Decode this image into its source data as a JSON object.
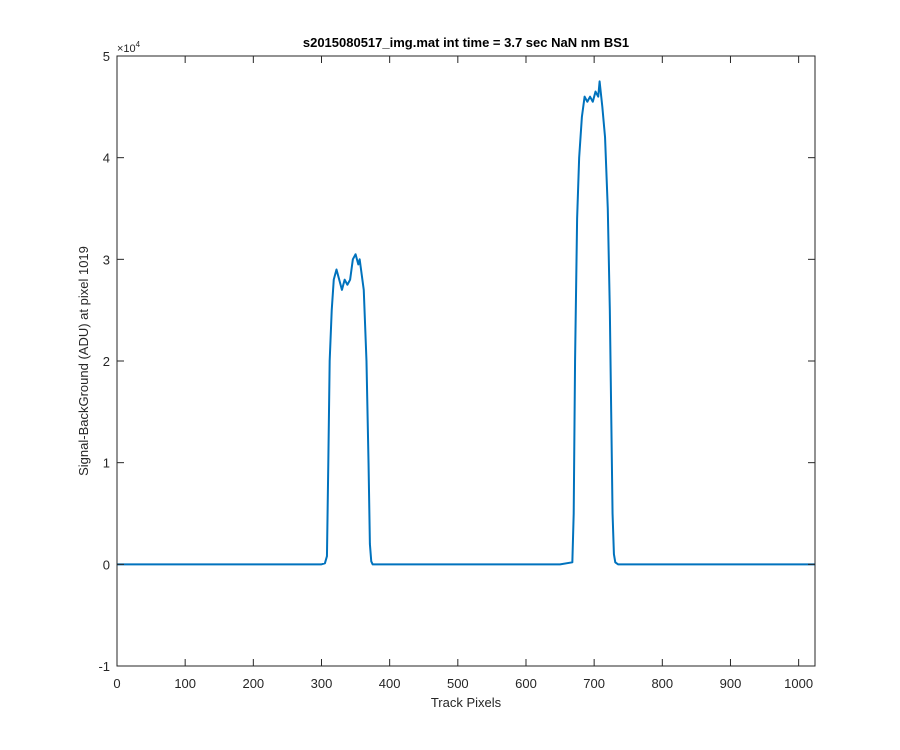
{
  "chart_data": {
    "type": "line",
    "title": "s2015080517_img.mat int time = 3.7 sec  NaN nm BS1",
    "xlabel": "Track Pixels",
    "ylabel": "Signal-BackGround (ADU) at pixel 1019",
    "xlim": [
      0,
      1024
    ],
    "ylim": [
      -10000,
      50000
    ],
    "x_ticks": [
      0,
      100,
      200,
      300,
      400,
      500,
      600,
      700,
      800,
      900,
      1000
    ],
    "x_tick_labels": [
      "0",
      "100",
      "200",
      "300",
      "400",
      "500",
      "600",
      "700",
      "800",
      "900",
      "1000"
    ],
    "y_ticks": [
      -10000,
      0,
      10000,
      20000,
      30000,
      40000,
      50000
    ],
    "y_tick_labels": [
      "-1",
      "0",
      "1",
      "2",
      "3",
      "4",
      "5"
    ],
    "y_exponent_base": "×10",
    "y_exponent_power": "4",
    "grid": false,
    "line_color": "#0072BD",
    "series": [
      {
        "x": [
          0,
          50,
          100,
          150,
          200,
          250,
          300,
          305,
          308,
          310,
          312,
          315,
          318,
          322,
          326,
          330,
          334,
          338,
          342,
          346,
          350,
          354,
          356,
          358,
          362,
          366,
          369,
          371,
          373,
          375,
          380,
          450,
          500,
          600,
          650,
          668,
          670,
          672,
          675,
          678,
          682,
          686,
          690,
          694,
          698,
          702,
          706,
          708,
          712,
          716,
          720,
          723,
          725,
          727,
          729,
          731,
          735,
          800,
          900,
          1024
        ],
        "y": [
          0,
          0,
          0,
          0,
          0,
          0,
          0,
          100,
          800,
          10000,
          20000,
          25000,
          28000,
          29000,
          28000,
          27000,
          28000,
          27500,
          28000,
          30000,
          30500,
          29500,
          30000,
          29000,
          27000,
          20000,
          10000,
          2000,
          300,
          0,
          0,
          0,
          0,
          0,
          0,
          200,
          5000,
          20000,
          34000,
          40000,
          44000,
          46000,
          45500,
          46000,
          45500,
          46500,
          46000,
          47500,
          45000,
          42000,
          35000,
          25000,
          15000,
          5000,
          1000,
          200,
          0,
          0,
          0,
          0
        ]
      }
    ]
  }
}
